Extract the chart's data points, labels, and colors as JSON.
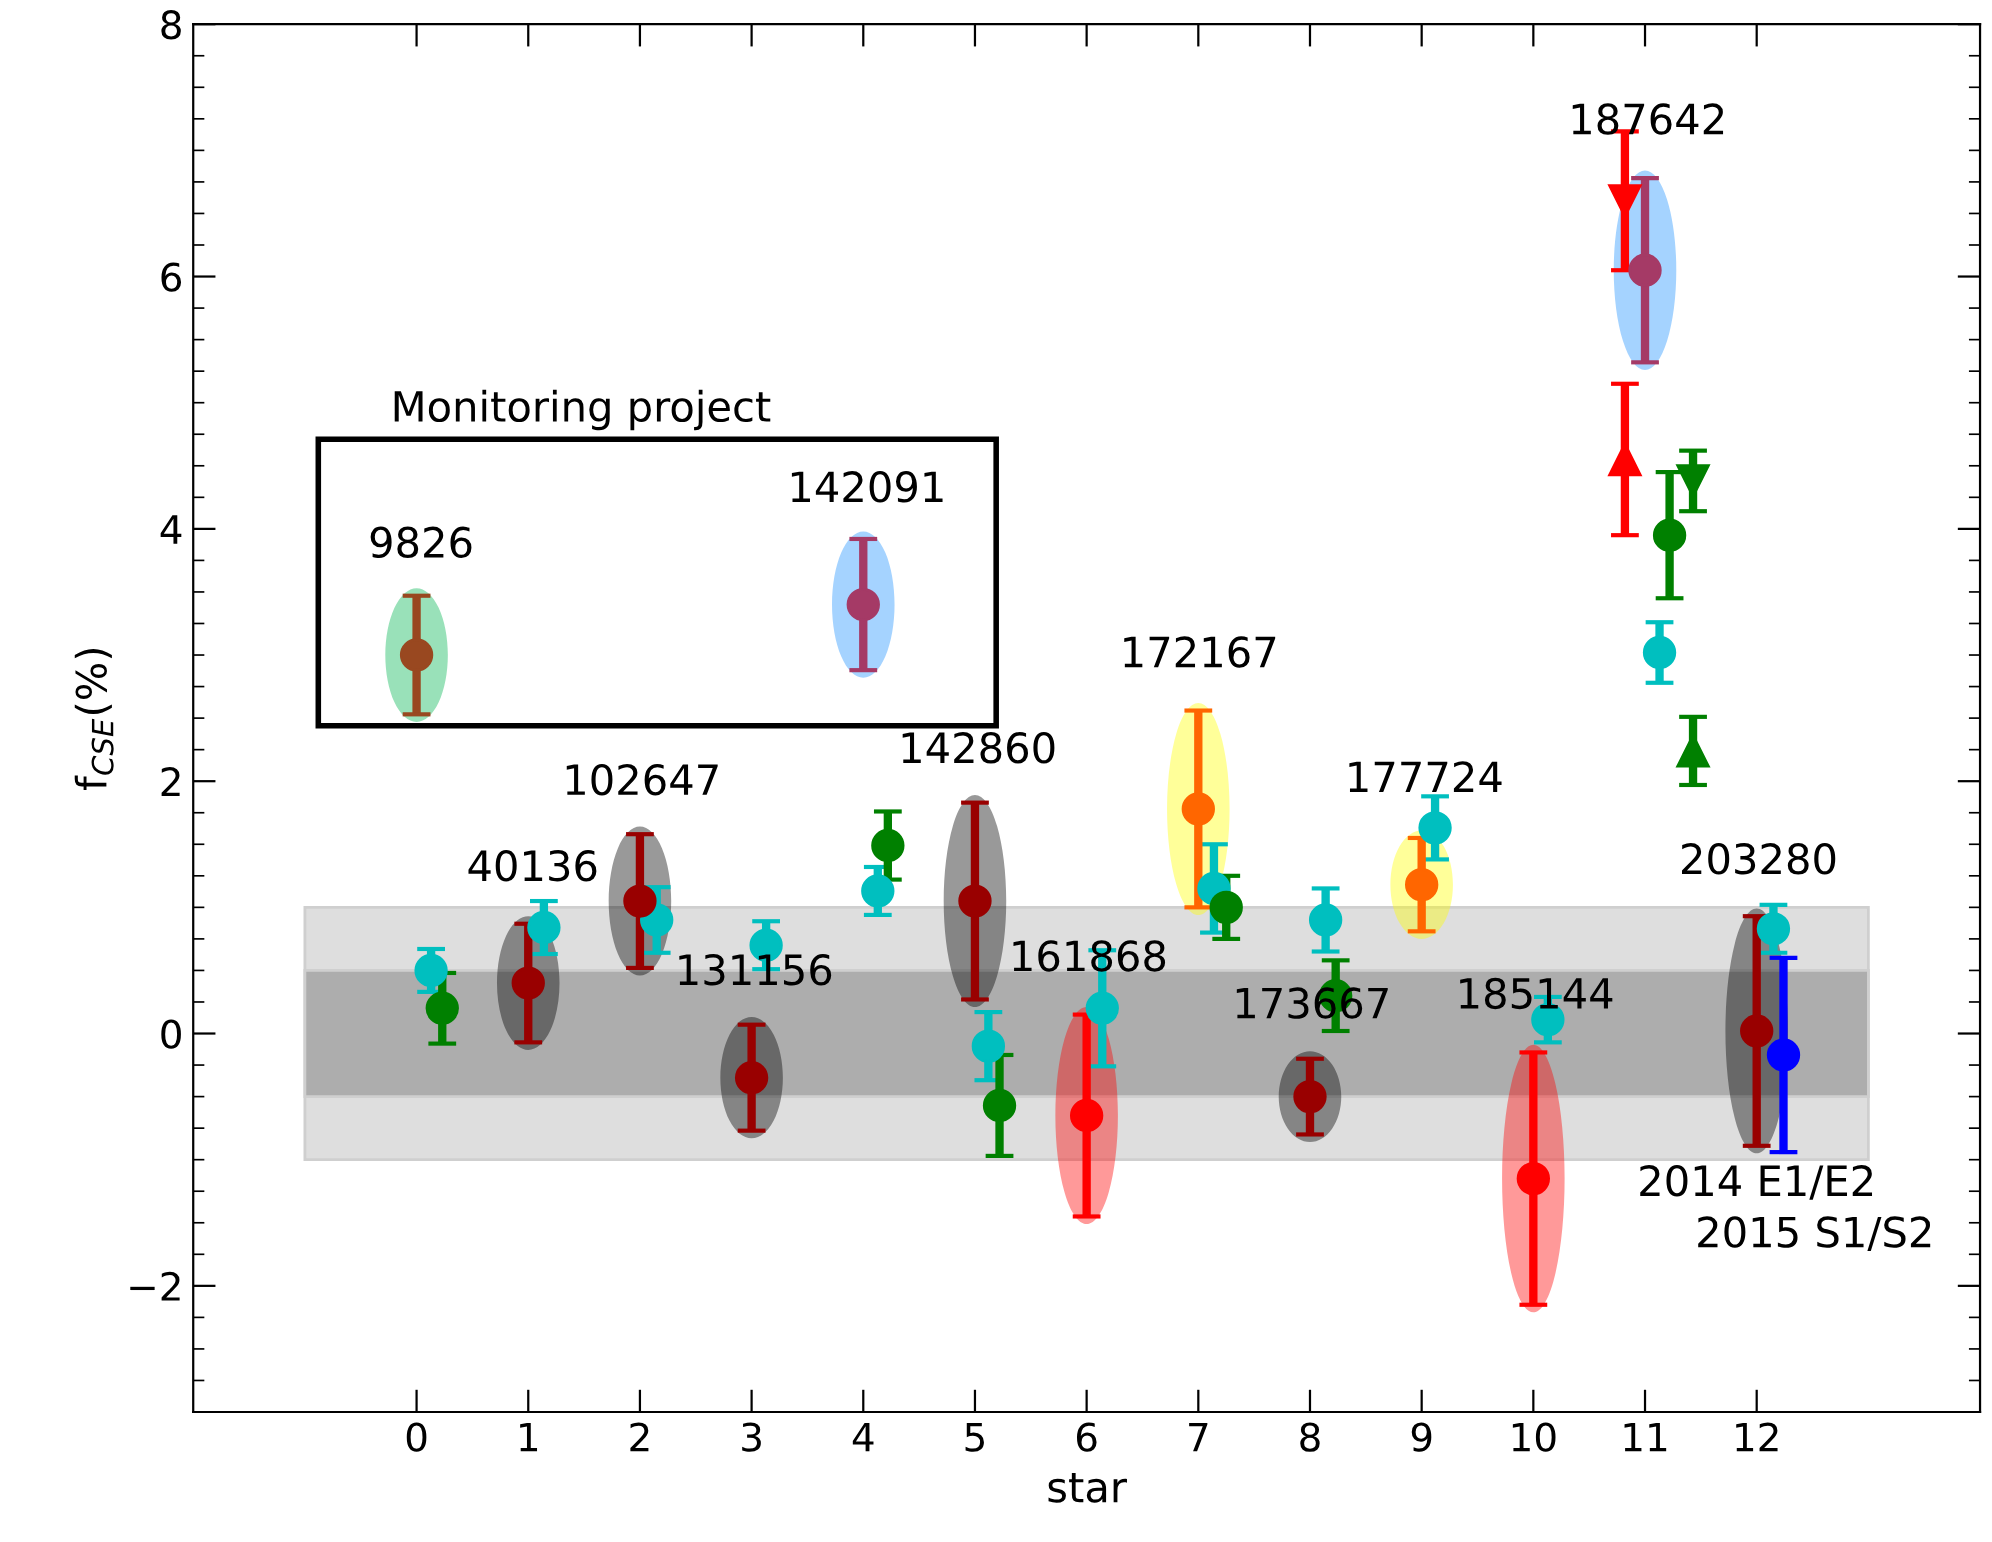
{
  "chart_data": {
    "type": "scatter",
    "xlabel": "star",
    "ylabel": "f$_{CSE}$(%)",
    "xlim": [
      -2,
      14
    ],
    "ylim": [
      -3,
      8
    ],
    "xticks": [
      0,
      1,
      2,
      3,
      4,
      5,
      6,
      7,
      8,
      9,
      10,
      11,
      12
    ],
    "yticks": [
      {
        "value": -2,
        "label": "−2"
      },
      0,
      2,
      4,
      6,
      8
    ],
    "grid": false,
    "legend": false,
    "bands": [
      {
        "axis": "y",
        "from": -1,
        "to": 1,
        "color": "#dedede"
      },
      {
        "axis": "y",
        "from": -0.5,
        "to": 0.5,
        "color": "#adadad"
      }
    ],
    "series": [
      {
        "color": "#00bfbf",
        "marker": "circle",
        "x": [
          0.13,
          1.14,
          2.15,
          3.13,
          4.13,
          5.12,
          6.14,
          7.14,
          8.14,
          9.12,
          10.13,
          11.13,
          12.15
        ],
        "values": [
          0.5,
          0.84,
          0.9,
          0.7,
          1.13,
          -0.1,
          0.2,
          1.15,
          0.9,
          1.63,
          0.11,
          3.02,
          0.83
        ],
        "errors": [
          0.17,
          0.21,
          0.26,
          0.19,
          0.19,
          0.27,
          0.46,
          0.35,
          0.25,
          0.25,
          0.18,
          0.24,
          0.19
        ]
      },
      {
        "color": "#008000",
        "marker": "circle",
        "x": [
          0.23,
          4.22,
          5.22,
          7.25,
          8.23,
          11.22
        ],
        "values": [
          0.2,
          1.49,
          -0.57,
          1.0,
          0.3,
          3.95
        ],
        "errors": [
          0.28,
          0.27,
          0.4,
          0.25,
          0.28,
          0.5
        ]
      },
      {
        "color": "#0000ff",
        "marker": "circle",
        "x": [
          12.24
        ],
        "values": [
          -0.17
        ],
        "errors": [
          0.77
        ]
      },
      {
        "color": "#ff0000",
        "marker": "triangle_down",
        "x": [
          10.82
        ],
        "values": [
          6.6
        ],
        "errors": [
          0.55
        ]
      },
      {
        "color": "#ff0000",
        "marker": "triangle",
        "x": [
          10.82
        ],
        "values": [
          4.55
        ],
        "errors": [
          0.6
        ]
      },
      {
        "color": "#008000",
        "marker": "triangle_down",
        "x": [
          11.43
        ],
        "values": [
          4.38
        ],
        "errors": [
          0.24
        ]
      },
      {
        "color": "#008000",
        "marker": "triangle",
        "x": [
          11.43
        ],
        "values": [
          2.24
        ],
        "errors": [
          0.27
        ]
      },
      {
        "color": "#ff0000",
        "marker": "circle",
        "x": [
          0,
          1,
          2,
          3,
          4,
          5,
          6,
          7,
          8,
          9,
          10,
          11,
          12
        ],
        "values": [
          3.0,
          0.4,
          1.05,
          -0.35,
          3.4,
          1.05,
          -0.65,
          1.78,
          -0.5,
          1.18,
          -1.15,
          6.05,
          0.02
        ],
        "errors": [
          0.47,
          0.47,
          0.53,
          0.42,
          0.52,
          0.78,
          0.8,
          0.78,
          0.3,
          0.37,
          1.0,
          0.73,
          0.91
        ],
        "colors": [
          "#994820",
          "#990000",
          "#990000",
          "#990000",
          "#a53a66",
          "#990000",
          "#ff0000",
          "#ff6600",
          "#990000",
          "#ff6600",
          "#ff0000",
          "#a53a66",
          "#990000"
        ]
      }
    ],
    "annotations": [
      "Monitoring project",
      "9826",
      "142091",
      "40136",
      "102647",
      "131156",
      "142860",
      "161868",
      "172167",
      "173667",
      "177724",
      "185144",
      "187642",
      "203280",
      "2014 E1/E2",
      "2015 S1/S2"
    ]
  }
}
